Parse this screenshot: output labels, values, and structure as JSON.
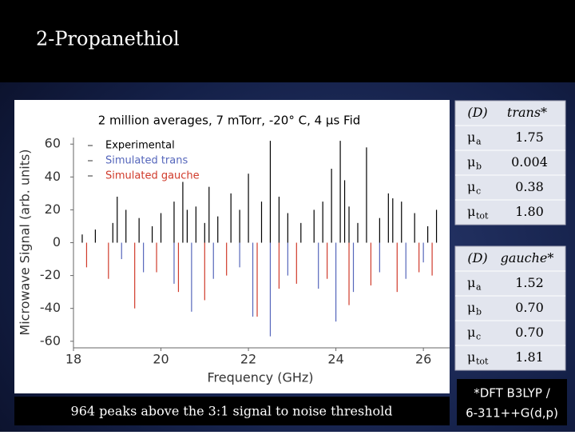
{
  "slide_title": "2-Propanethiol",
  "chart_data": {
    "type": "stick",
    "title": "2 million averages, 7 mTorr, -20° C, 4 μs Fid",
    "x_label": "Frequency (GHz)",
    "y_label": "Microwave Signal (arb. units)",
    "xlim": [
      18,
      26.6
    ],
    "ylim": [
      -64,
      64
    ],
    "xticks": [
      18,
      20,
      22,
      24,
      26
    ],
    "yticks": [
      -60,
      -40,
      -20,
      0,
      20,
      40,
      60
    ],
    "series": [
      {
        "name": "Experimental",
        "color": "#000000",
        "x": [
          18.2,
          18.5,
          18.9,
          19.2,
          19.5,
          19.8,
          20.0,
          20.3,
          20.5,
          20.8,
          21.0,
          21.3,
          21.6,
          21.8,
          22.0,
          22.3,
          22.5,
          22.7,
          22.9,
          23.2,
          23.5,
          23.7,
          23.9,
          24.1,
          24.3,
          24.5,
          24.7,
          25.0,
          25.2,
          25.5,
          25.8,
          26.1,
          26.3,
          19.0,
          21.1,
          24.2,
          25.3,
          20.6
        ],
        "values": [
          5,
          8,
          12,
          20,
          15,
          10,
          18,
          25,
          37,
          22,
          12,
          16,
          30,
          20,
          42,
          25,
          62,
          28,
          18,
          12,
          20,
          25,
          45,
          62,
          22,
          12,
          58,
          15,
          30,
          25,
          18,
          10,
          20,
          28,
          34,
          38,
          27,
          20
        ]
      },
      {
        "name": "Simulated trans",
        "color": "#5566bb",
        "x": [
          19.1,
          19.6,
          20.3,
          20.7,
          21.2,
          21.8,
          22.1,
          22.5,
          22.9,
          23.6,
          24.0,
          24.4,
          25.0,
          25.6,
          26.0
        ],
        "values": [
          -10,
          -18,
          -25,
          -42,
          -22,
          -15,
          -45,
          -57,
          -20,
          -28,
          -48,
          -30,
          -18,
          -22,
          -12
        ]
      },
      {
        "name": "Simulated gauche",
        "color": "#d03a2a",
        "x": [
          18.3,
          18.8,
          19.4,
          19.9,
          20.4,
          21.0,
          21.5,
          22.2,
          22.7,
          23.1,
          23.8,
          24.3,
          24.8,
          25.4,
          25.9,
          26.2
        ],
        "values": [
          -15,
          -22,
          -40,
          -18,
          -30,
          -35,
          -20,
          -45,
          -28,
          -25,
          -22,
          -38,
          -26,
          -30,
          -18,
          -20
        ]
      }
    ]
  },
  "caption": "964 peaks above the 3:1 signal to noise threshold",
  "tables": [
    {
      "header": [
        "(D)",
        "trans*"
      ],
      "rows": [
        [
          "μ",
          "a",
          "1.75"
        ],
        [
          "μ",
          "b",
          "0.004"
        ],
        [
          "μ",
          "c",
          "0.38"
        ],
        [
          "μ",
          "tot",
          "1.80"
        ]
      ]
    },
    {
      "header": [
        "(D)",
        "gauche*"
      ],
      "rows": [
        [
          "μ",
          "a",
          "1.52"
        ],
        [
          "μ",
          "b",
          "0.70"
        ],
        [
          "μ",
          "c",
          "0.70"
        ],
        [
          "μ",
          "tot",
          "1.81"
        ]
      ]
    }
  ],
  "footnote": [
    "*DFT B3LYP /",
    "6-311++G(d,p)"
  ]
}
